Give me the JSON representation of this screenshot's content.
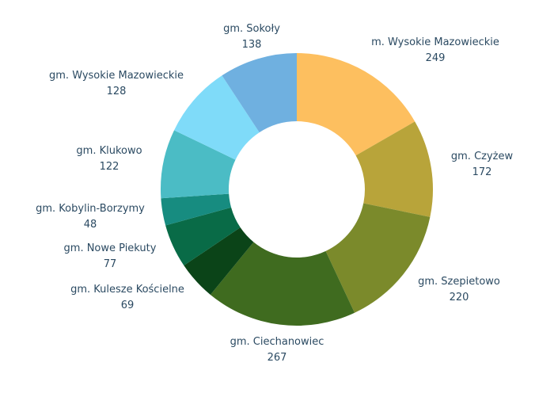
{
  "chart_data": {
    "type": "pie",
    "donut": true,
    "labels": [
      "m. Wysokie Mazowieckie",
      "gm. Czyżew",
      "gm. Szepietowo",
      "gm. Ciechanowiec",
      "gm. Kulesze Kościelne",
      "gm. Nowe Piekuty",
      "gm. Kobylin-Borzymy",
      "gm. Klukowo",
      "gm. Wysokie Mazowieckie",
      "gm. Sokoły"
    ],
    "values": [
      249,
      172,
      220,
      267,
      69,
      77,
      48,
      122,
      128,
      138
    ],
    "colors": [
      "#fdbf5f",
      "#b8a43a",
      "#7b8a2b",
      "#3f6b1f",
      "#0b4418",
      "#096b47",
      "#178c80",
      "#4bbcc5",
      "#7fdbf9",
      "#6fb0e0"
    ],
    "legend": "none"
  }
}
